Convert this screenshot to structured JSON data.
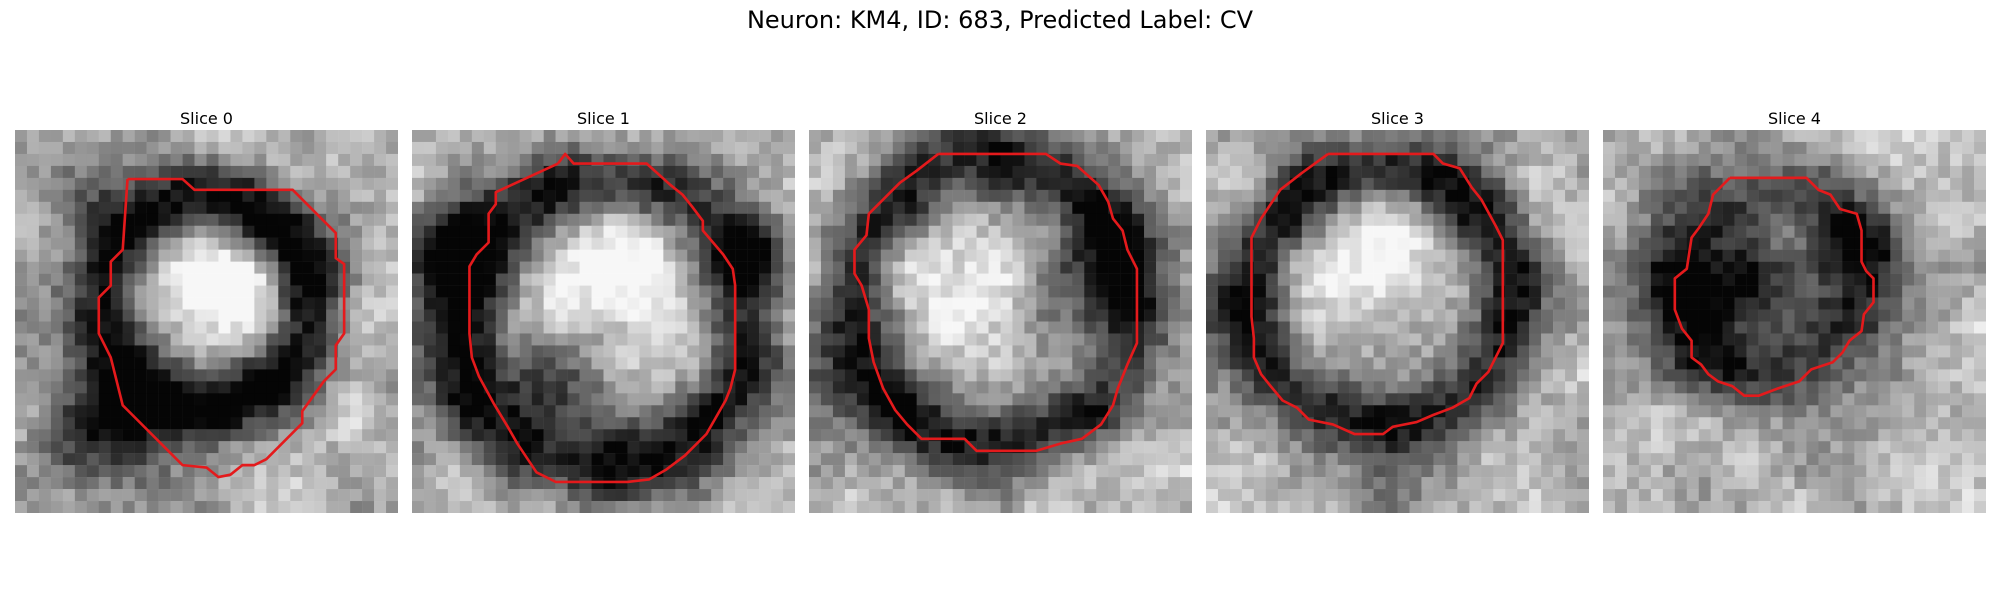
{
  "figure": {
    "title": "Neuron: KM4, ID: 683, Predicted Label: CV",
    "contour_color": "#e41a1c",
    "grid_size": 32
  },
  "panels": [
    {
      "title": "Slice 0",
      "seed": 11,
      "ring": {
        "cx": 16.0,
        "cy": 14.5,
        "r": 8.6,
        "width": 3.2,
        "dark": 0.75
      },
      "center_bright": {
        "cx": 17,
        "cy": 13,
        "r": 5.0,
        "gain": 0.35
      },
      "blobs": [
        {
          "cx": 5,
          "cy": 5,
          "r": 3,
          "dark": 0.35
        },
        {
          "cx": 8,
          "cy": 25,
          "r": 5,
          "dark": 0.55
        }
      ],
      "contour": [
        [
          9.4,
          4.1
        ],
        [
          14.0,
          4.1
        ],
        [
          15.0,
          5.0
        ],
        [
          23.2,
          5.0
        ],
        [
          26.8,
          8.6
        ],
        [
          26.8,
          10.7
        ],
        [
          27.5,
          11.2
        ],
        [
          27.5,
          17.0
        ],
        [
          26.8,
          18.0
        ],
        [
          26.8,
          20.0
        ],
        [
          25.8,
          21.0
        ],
        [
          24.0,
          23.5
        ],
        [
          24.0,
          24.5
        ],
        [
          21.0,
          27.5
        ],
        [
          20.0,
          28.0
        ],
        [
          19.0,
          28.0
        ],
        [
          18.0,
          28.8
        ],
        [
          17.0,
          29.0
        ],
        [
          16.0,
          28.2
        ],
        [
          14.0,
          28.0
        ],
        [
          13.0,
          27.0
        ],
        [
          9.0,
          23.0
        ],
        [
          8.0,
          19.0
        ],
        [
          7.0,
          17.0
        ],
        [
          7.0,
          16.0
        ],
        [
          7.0,
          14.0
        ],
        [
          8.0,
          13.0
        ],
        [
          8.0,
          11.0
        ],
        [
          9.0,
          10.0
        ],
        [
          9.4,
          4.1
        ]
      ]
    },
    {
      "title": "Slice 1",
      "seed": 23,
      "ring": {
        "cx": 16.0,
        "cy": 16.5,
        "r": 12.0,
        "width": 3.6,
        "dark": 0.6
      },
      "center_bright": {
        "cx": 18,
        "cy": 12,
        "r": 6.0,
        "gain": 0.35
      },
      "blobs": [
        {
          "cx": 3,
          "cy": 10,
          "r": 4,
          "dark": 0.45
        },
        {
          "cx": 29,
          "cy": 10,
          "r": 3,
          "dark": 0.45
        },
        {
          "cx": 12,
          "cy": 21,
          "r": 5,
          "dark": 0.35
        }
      ],
      "contour": [
        [
          12.2,
          2.8
        ],
        [
          12.8,
          2.0
        ],
        [
          13.5,
          2.8
        ],
        [
          19.6,
          2.8
        ],
        [
          21.6,
          4.6
        ],
        [
          22.6,
          5.4
        ],
        [
          23.4,
          6.4
        ],
        [
          24.3,
          7.6
        ],
        [
          24.3,
          8.4
        ],
        [
          26.0,
          10.4
        ],
        [
          26.8,
          11.6
        ],
        [
          27.0,
          13.0
        ],
        [
          27.0,
          20.0
        ],
        [
          26.6,
          21.6
        ],
        [
          26.2,
          22.6
        ],
        [
          25.4,
          24.0
        ],
        [
          24.6,
          25.4
        ],
        [
          22.8,
          27.2
        ],
        [
          21.2,
          28.4
        ],
        [
          19.8,
          29.2
        ],
        [
          18.0,
          29.4
        ],
        [
          12.0,
          29.4
        ],
        [
          10.4,
          28.6
        ],
        [
          9.6,
          27.4
        ],
        [
          8.8,
          26.2
        ],
        [
          8.0,
          24.8
        ],
        [
          6.8,
          22.8
        ],
        [
          5.6,
          20.6
        ],
        [
          5.0,
          19.0
        ],
        [
          4.8,
          17.0
        ],
        [
          4.8,
          11.4
        ],
        [
          5.4,
          10.4
        ],
        [
          6.4,
          9.4
        ],
        [
          6.4,
          7.0
        ],
        [
          7.0,
          6.2
        ],
        [
          7.0,
          5.2
        ],
        [
          12.2,
          2.8
        ]
      ]
    },
    {
      "title": "Slice 2",
      "seed": 37,
      "ring": {
        "cx": 15.5,
        "cy": 14.5,
        "r": 11.8,
        "width": 3.4,
        "dark": 0.55
      },
      "center_bright": {
        "cx": 13,
        "cy": 12,
        "r": 6.0,
        "gain": 0.25
      },
      "blobs": [
        {
          "cx": 24,
          "cy": 11,
          "r": 5,
          "dark": 0.45
        },
        {
          "cx": 4,
          "cy": 22,
          "r": 5,
          "dark": 0.3
        }
      ],
      "contour": [
        [
          10.8,
          2.0
        ],
        [
          19.8,
          2.0
        ],
        [
          21.0,
          2.8
        ],
        [
          22.4,
          3.0
        ],
        [
          24.2,
          4.6
        ],
        [
          25.0,
          6.0
        ],
        [
          25.4,
          7.4
        ],
        [
          26.2,
          8.4
        ],
        [
          26.6,
          10.0
        ],
        [
          27.4,
          11.6
        ],
        [
          27.4,
          13.4
        ],
        [
          27.4,
          17.8
        ],
        [
          26.6,
          19.6
        ],
        [
          25.8,
          21.6
        ],
        [
          25.4,
          23.0
        ],
        [
          24.4,
          24.6
        ],
        [
          22.8,
          25.8
        ],
        [
          21.0,
          26.2
        ],
        [
          19.0,
          26.8
        ],
        [
          14.0,
          26.8
        ],
        [
          13.0,
          25.8
        ],
        [
          9.4,
          25.8
        ],
        [
          8.2,
          24.6
        ],
        [
          7.2,
          23.4
        ],
        [
          6.2,
          21.6
        ],
        [
          5.4,
          19.4
        ],
        [
          5.0,
          17.4
        ],
        [
          5.0,
          15.0
        ],
        [
          4.4,
          13.0
        ],
        [
          3.8,
          12.0
        ],
        [
          3.8,
          10.0
        ],
        [
          4.8,
          8.8
        ],
        [
          5.0,
          7.0
        ],
        [
          6.4,
          5.6
        ],
        [
          7.6,
          4.4
        ],
        [
          9.0,
          3.4
        ],
        [
          10.8,
          2.0
        ]
      ]
    },
    {
      "title": "Slice 3",
      "seed": 53,
      "ring": {
        "cx": 14.8,
        "cy": 14.0,
        "r": 10.8,
        "width": 3.0,
        "dark": 0.6
      },
      "center_bright": {
        "cx": 14,
        "cy": 11,
        "r": 5.5,
        "gain": 0.3
      },
      "blobs": [
        {
          "cx": 15,
          "cy": 30,
          "r": 3.5,
          "dark": 0.4
        },
        {
          "cx": 2,
          "cy": 15,
          "r": 3,
          "dark": 0.25
        }
      ],
      "contour": [
        [
          10.2,
          2.0
        ],
        [
          19.0,
          2.0
        ],
        [
          19.8,
          2.8
        ],
        [
          21.2,
          3.2
        ],
        [
          22.2,
          4.8
        ],
        [
          23.0,
          5.8
        ],
        [
          24.2,
          8.0
        ],
        [
          24.8,
          9.2
        ],
        [
          24.8,
          17.8
        ],
        [
          24.2,
          19.0
        ],
        [
          23.6,
          20.2
        ],
        [
          22.6,
          21.2
        ],
        [
          22.0,
          22.4
        ],
        [
          20.6,
          23.2
        ],
        [
          19.0,
          23.8
        ],
        [
          17.6,
          24.4
        ],
        [
          15.6,
          24.8
        ],
        [
          14.8,
          25.4
        ],
        [
          12.4,
          25.4
        ],
        [
          10.6,
          24.6
        ],
        [
          8.6,
          24.2
        ],
        [
          7.6,
          23.2
        ],
        [
          6.4,
          22.6
        ],
        [
          5.4,
          21.4
        ],
        [
          4.6,
          20.4
        ],
        [
          4.0,
          19.0
        ],
        [
          4.0,
          17.4
        ],
        [
          3.8,
          15.6
        ],
        [
          3.8,
          9.0
        ],
        [
          4.6,
          7.4
        ],
        [
          5.4,
          6.2
        ],
        [
          6.2,
          5.0
        ],
        [
          8.0,
          3.6
        ],
        [
          10.2,
          2.0
        ]
      ]
    },
    {
      "title": "Slice 4",
      "seed": 71,
      "ring": {
        "cx": 13.5,
        "cy": 13.0,
        "r": 7.5,
        "width": 4.0,
        "dark": 0.5
      },
      "center_bright": {
        "cx": 13,
        "cy": 13,
        "r": 3.5,
        "gain": -0.15
      },
      "blobs": [
        {
          "cx": 10,
          "cy": 14,
          "r": 4.5,
          "dark": 0.55
        },
        {
          "cx": 22,
          "cy": 10,
          "r": 3.5,
          "dark": 0.35
        },
        {
          "cx": 5,
          "cy": 12,
          "r": 3,
          "dark": 0.25
        }
      ],
      "contour": [
        [
          10.6,
          4.0
        ],
        [
          17.0,
          4.0
        ],
        [
          18.0,
          5.0
        ],
        [
          19.0,
          5.4
        ],
        [
          19.8,
          6.6
        ],
        [
          21.2,
          7.0
        ],
        [
          21.6,
          8.4
        ],
        [
          21.6,
          11.0
        ],
        [
          22.0,
          11.8
        ],
        [
          22.6,
          12.4
        ],
        [
          22.6,
          14.4
        ],
        [
          21.8,
          15.4
        ],
        [
          21.6,
          16.8
        ],
        [
          20.6,
          17.6
        ],
        [
          20.0,
          18.6
        ],
        [
          19.2,
          19.4
        ],
        [
          17.4,
          20.0
        ],
        [
          16.4,
          21.0
        ],
        [
          14.6,
          21.6
        ],
        [
          13.0,
          22.2
        ],
        [
          11.8,
          22.2
        ],
        [
          10.8,
          21.4
        ],
        [
          9.6,
          21.0
        ],
        [
          8.8,
          20.4
        ],
        [
          8.2,
          19.6
        ],
        [
          7.4,
          19.0
        ],
        [
          7.4,
          17.6
        ],
        [
          6.6,
          16.6
        ],
        [
          6.0,
          15.0
        ],
        [
          6.0,
          12.4
        ],
        [
          7.0,
          11.6
        ],
        [
          7.4,
          9.0
        ],
        [
          8.0,
          8.2
        ],
        [
          8.8,
          7.0
        ],
        [
          9.2,
          5.4
        ],
        [
          10.6,
          4.0
        ]
      ]
    }
  ]
}
